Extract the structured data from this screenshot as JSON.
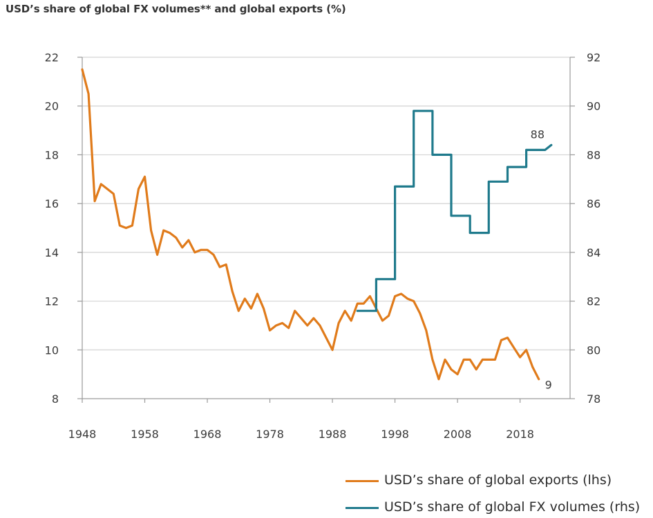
{
  "title": "USD’s share of global FX volumes** and global exports (%)",
  "colors": {
    "exports": "#e07b1b",
    "fx": "#1f7a8c",
    "grid": "#d3d3d3",
    "axis": "#9a9a9a"
  },
  "chart_data": {
    "type": "line",
    "title": "USD’s share of global FX volumes** and global exports (%)",
    "x_ticks": [
      1948,
      1958,
      1968,
      1978,
      1988,
      1998,
      2008,
      2018
    ],
    "xlim": [
      1948,
      2026
    ],
    "y_left": {
      "lim": [
        8,
        22
      ],
      "ticks": [
        8,
        10,
        12,
        14,
        16,
        18,
        20,
        22
      ]
    },
    "y_right": {
      "lim": [
        78,
        92
      ],
      "ticks": [
        78,
        80,
        82,
        84,
        86,
        88,
        90,
        92
      ]
    },
    "grid": true,
    "legend_position": "bottom-right",
    "series": [
      {
        "name": "USD’s share of global exports (lhs)",
        "axis": "left",
        "color": "#e07b1b",
        "end_label": "9",
        "points": [
          [
            1948,
            21.5
          ],
          [
            1949,
            20.5
          ],
          [
            1950,
            16.1
          ],
          [
            1951,
            16.8
          ],
          [
            1952,
            16.6
          ],
          [
            1953,
            16.4
          ],
          [
            1954,
            15.1
          ],
          [
            1955,
            15.0
          ],
          [
            1956,
            15.1
          ],
          [
            1957,
            16.6
          ],
          [
            1958,
            17.1
          ],
          [
            1959,
            14.9
          ],
          [
            1960,
            13.9
          ],
          [
            1961,
            14.9
          ],
          [
            1962,
            14.8
          ],
          [
            1963,
            14.6
          ],
          [
            1964,
            14.2
          ],
          [
            1965,
            14.5
          ],
          [
            1966,
            14.0
          ],
          [
            1967,
            14.1
          ],
          [
            1968,
            14.1
          ],
          [
            1969,
            13.9
          ],
          [
            1970,
            13.4
          ],
          [
            1971,
            13.5
          ],
          [
            1972,
            12.4
          ],
          [
            1973,
            11.6
          ],
          [
            1974,
            12.1
          ],
          [
            1975,
            11.7
          ],
          [
            1976,
            12.3
          ],
          [
            1977,
            11.7
          ],
          [
            1978,
            10.8
          ],
          [
            1979,
            11.0
          ],
          [
            1980,
            11.1
          ],
          [
            1981,
            10.9
          ],
          [
            1982,
            11.6
          ],
          [
            1983,
            11.3
          ],
          [
            1984,
            11.0
          ],
          [
            1985,
            11.3
          ],
          [
            1986,
            11.0
          ],
          [
            1987,
            10.5
          ],
          [
            1988,
            10.0
          ],
          [
            1989,
            11.1
          ],
          [
            1990,
            11.6
          ],
          [
            1991,
            11.2
          ],
          [
            1992,
            11.9
          ],
          [
            1993,
            11.9
          ],
          [
            1994,
            12.2
          ],
          [
            1995,
            11.7
          ],
          [
            1996,
            11.2
          ],
          [
            1997,
            11.4
          ],
          [
            1998,
            12.2
          ],
          [
            1999,
            12.3
          ],
          [
            2000,
            12.1
          ],
          [
            2001,
            12.0
          ],
          [
            2002,
            11.5
          ],
          [
            2003,
            10.8
          ],
          [
            2004,
            9.6
          ],
          [
            2005,
            8.8
          ],
          [
            2006,
            9.6
          ],
          [
            2007,
            9.2
          ],
          [
            2008,
            9.0
          ],
          [
            2009,
            9.6
          ],
          [
            2010,
            9.6
          ],
          [
            2011,
            9.2
          ],
          [
            2012,
            9.6
          ],
          [
            2013,
            9.6
          ],
          [
            2014,
            9.6
          ],
          [
            2015,
            10.4
          ],
          [
            2016,
            10.5
          ],
          [
            2017,
            10.1
          ],
          [
            2018,
            9.7
          ],
          [
            2019,
            10.0
          ],
          [
            2020,
            9.3
          ],
          [
            2021,
            8.8
          ]
        ]
      },
      {
        "name": "USD’s share of global FX volumes (rhs)",
        "axis": "right",
        "color": "#1f7a8c",
        "end_label": "88",
        "points": [
          [
            1992,
            81.6
          ],
          [
            1995,
            81.6
          ],
          [
            1995,
            82.9
          ],
          [
            1998,
            82.9
          ],
          [
            1998,
            86.7
          ],
          [
            2001,
            86.7
          ],
          [
            2001,
            89.8
          ],
          [
            2004,
            89.8
          ],
          [
            2004,
            88.0
          ],
          [
            2007,
            88.0
          ],
          [
            2007,
            85.5
          ],
          [
            2010,
            85.5
          ],
          [
            2010,
            84.8
          ],
          [
            2013,
            84.8
          ],
          [
            2013,
            86.9
          ],
          [
            2016,
            86.9
          ],
          [
            2016,
            87.5
          ],
          [
            2019,
            87.5
          ],
          [
            2019,
            88.2
          ],
          [
            2022,
            88.2
          ],
          [
            2023,
            88.4
          ]
        ]
      }
    ]
  },
  "legend": [
    {
      "label": "USD’s share of global exports (lhs)",
      "color": "#e07b1b"
    },
    {
      "label": "USD’s share of global FX volumes (rhs)",
      "color": "#1f7a8c"
    }
  ]
}
